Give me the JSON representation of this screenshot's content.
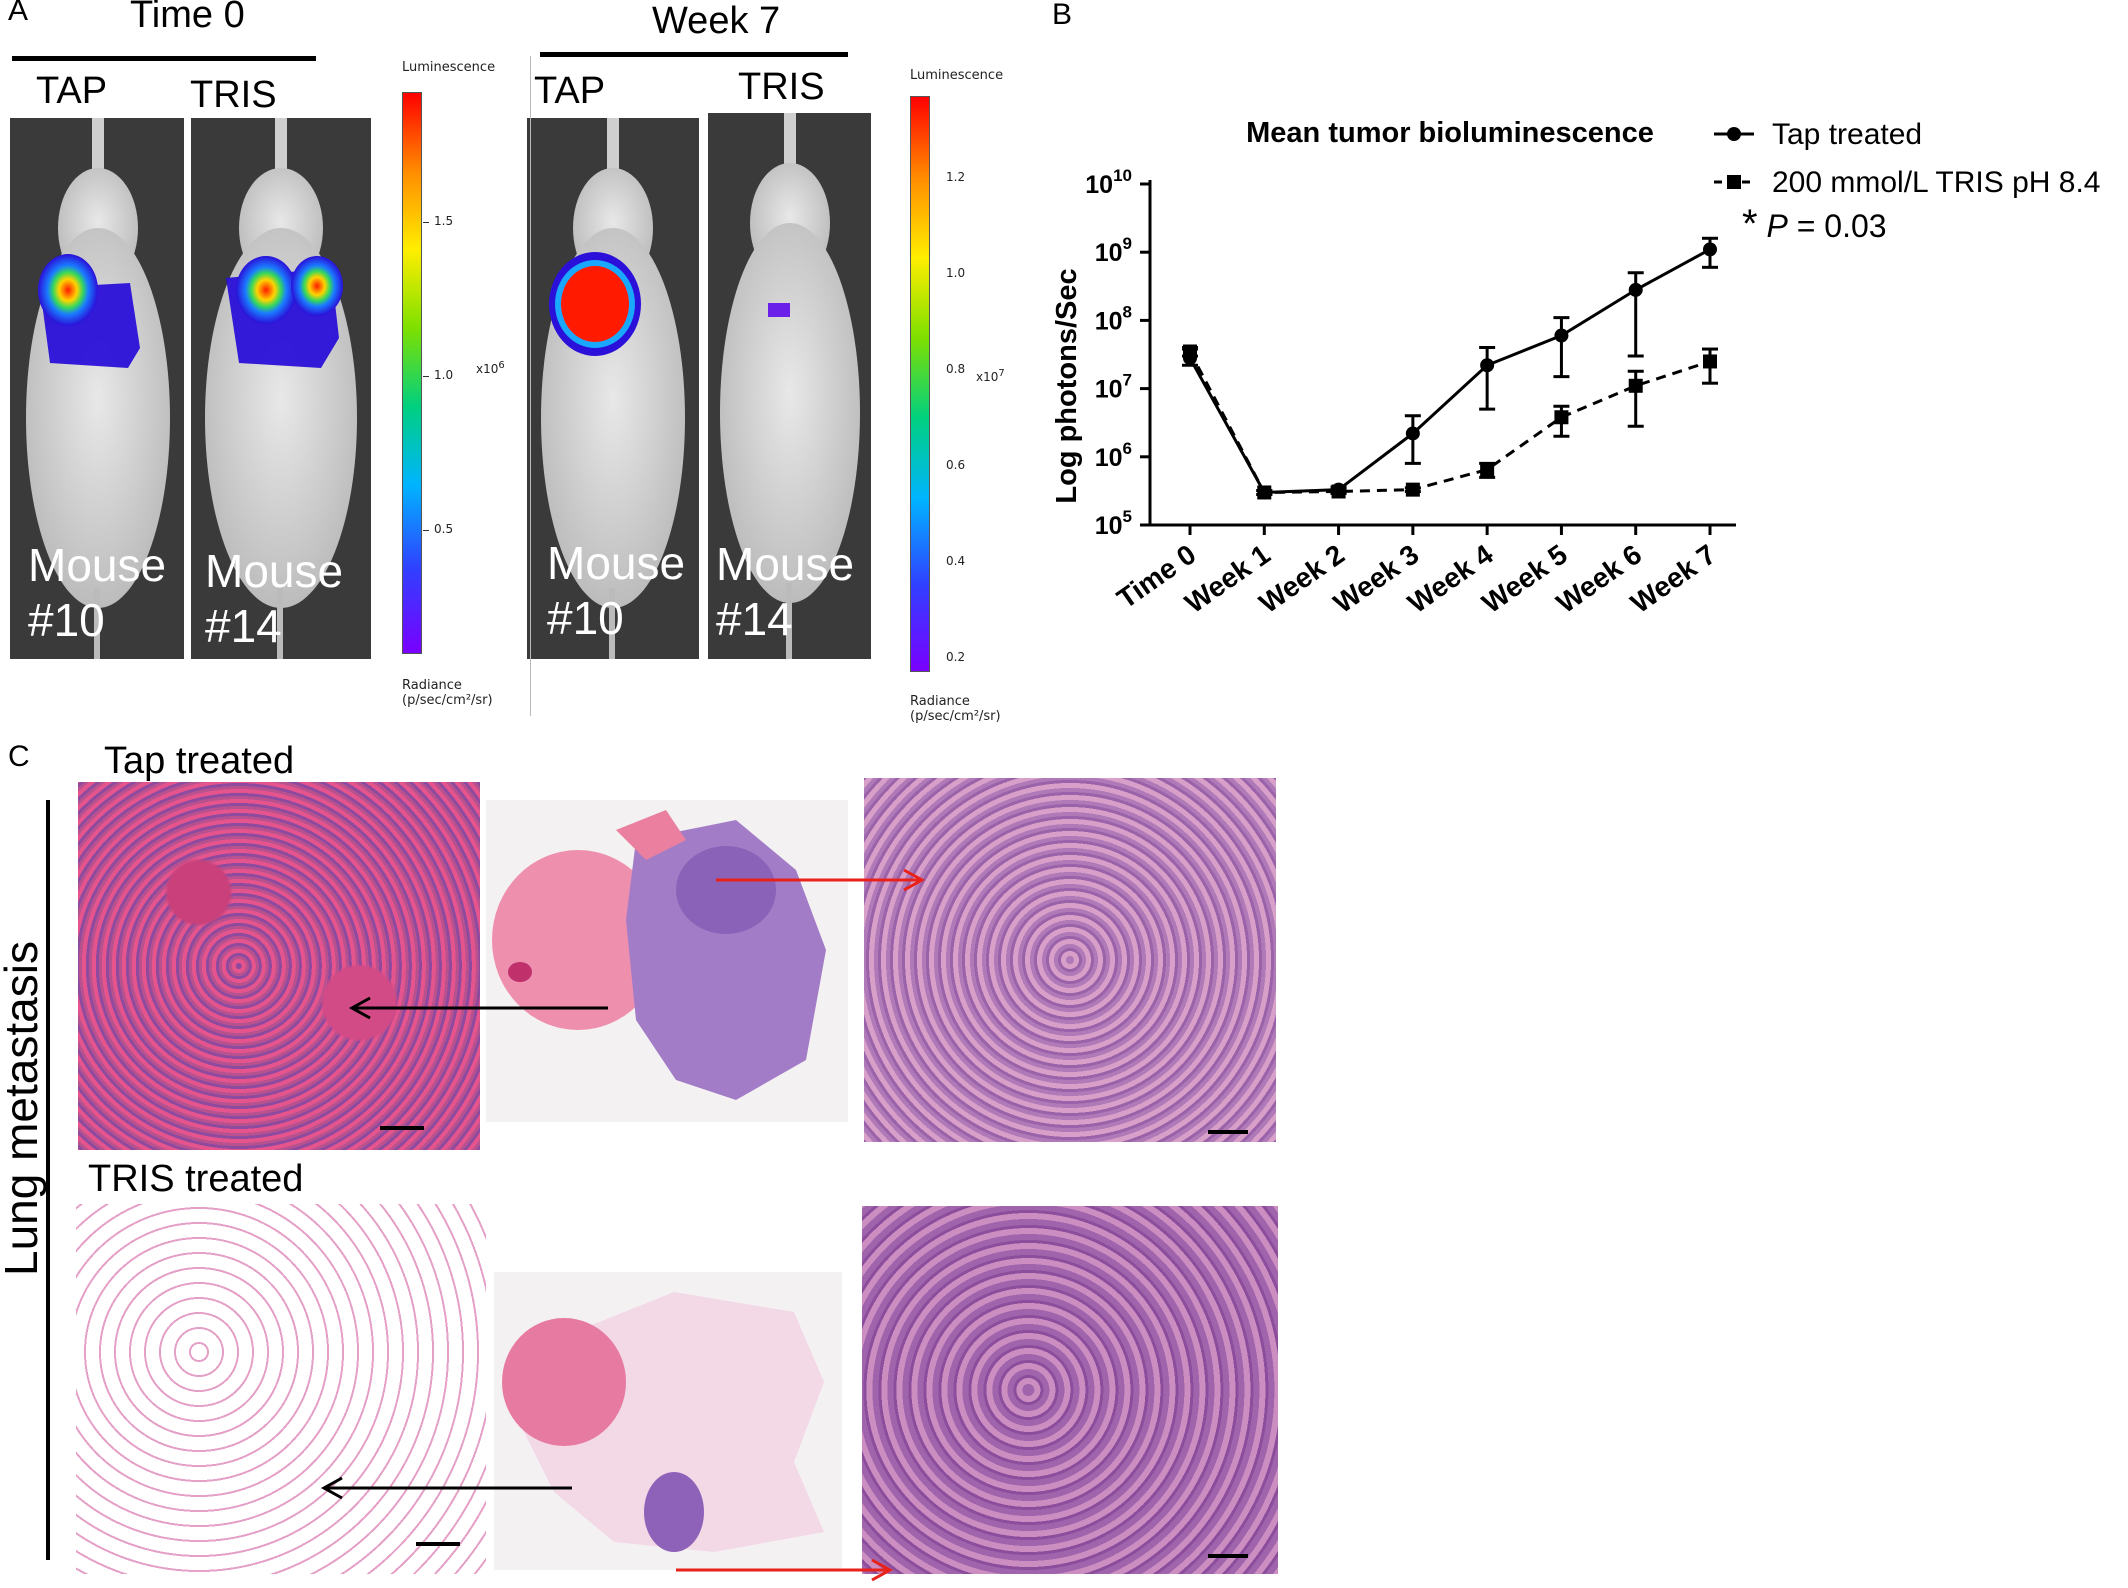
{
  "panel_a": {
    "letter": "A",
    "group_time0": "Time 0",
    "group_week7": "Week 7",
    "col_tap": "TAP",
    "col_tris": "TRIS",
    "mice": [
      "Mouse\n#10",
      "Mouse\n#14",
      "Mouse\n#10",
      "Mouse\n#14"
    ],
    "scale1": {
      "title": "Luminescence",
      "ticks": [
        "1.5",
        "1.0",
        "0.5"
      ],
      "multiplier": "x10",
      "exponent": "6",
      "unit_line1": "Radiance",
      "unit_line2": "(p/sec/cm²/sr)"
    },
    "scale2": {
      "title": "Luminescence",
      "ticks": [
        "1.2",
        "1.0",
        "0.8",
        "0.6",
        "0.4",
        "0.2"
      ],
      "multiplier": "x10",
      "exponent": "7",
      "unit_line1": "Radiance",
      "unit_line2": "(p/sec/cm²/sr)"
    }
  },
  "panel_b": {
    "letter": "B",
    "stat_asterisk": "*",
    "stat_p": "P",
    "stat_value": "= 0.03"
  },
  "chart_data": {
    "type": "line",
    "title": "Mean tumor bioluminescence",
    "xlabel": "",
    "ylabel": "Log photons/Sec",
    "y_scale": "log",
    "ylim": [
      100000,
      10000000000
    ],
    "y_ticks": [
      {
        "base": "10",
        "exp": "10",
        "value": 10000000000
      },
      {
        "base": "10",
        "exp": "9",
        "value": 1000000000
      },
      {
        "base": "10",
        "exp": "8",
        "value": 100000000
      },
      {
        "base": "10",
        "exp": "7",
        "value": 10000000
      },
      {
        "base": "10",
        "exp": "6",
        "value": 1000000
      },
      {
        "base": "10",
        "exp": "5",
        "value": 100000
      }
    ],
    "categories": [
      "Time 0",
      "Week 1",
      "Week 2",
      "Week 3",
      "Week 4",
      "Week 5",
      "Week 6",
      "Week 7"
    ],
    "legend_position": "top-right",
    "series": [
      {
        "name": "Tap treated",
        "marker": "circle",
        "line": "solid",
        "values": [
          28000000,
          300000,
          330000,
          2200000,
          22000000,
          60000000,
          280000000,
          1100000000
        ],
        "err_low": [
          22000000,
          280000,
          300000,
          800000,
          5000000,
          15000000,
          30000000,
          600000000
        ],
        "err_high": [
          38000000,
          320000,
          360000,
          4000000,
          40000000,
          110000000,
          500000000,
          1600000000
        ]
      },
      {
        "name": "200  mmol/L TRIS pH 8.4",
        "marker": "square",
        "line": "dashed",
        "values": [
          35000000,
          300000,
          310000,
          330000,
          650000,
          3800000,
          11000000,
          25000000
        ],
        "err_low": [
          30000000,
          280000,
          290000,
          310000,
          500000,
          2000000,
          2800000,
          12000000
        ],
        "err_high": [
          40000000,
          320000,
          330000,
          350000,
          800000,
          5500000,
          18000000,
          38000000
        ]
      }
    ]
  },
  "panel_c": {
    "letter": "C",
    "tap_title": "Tap treated",
    "tris_title": "TRIS treated",
    "side_label": "Lung metastasis"
  }
}
